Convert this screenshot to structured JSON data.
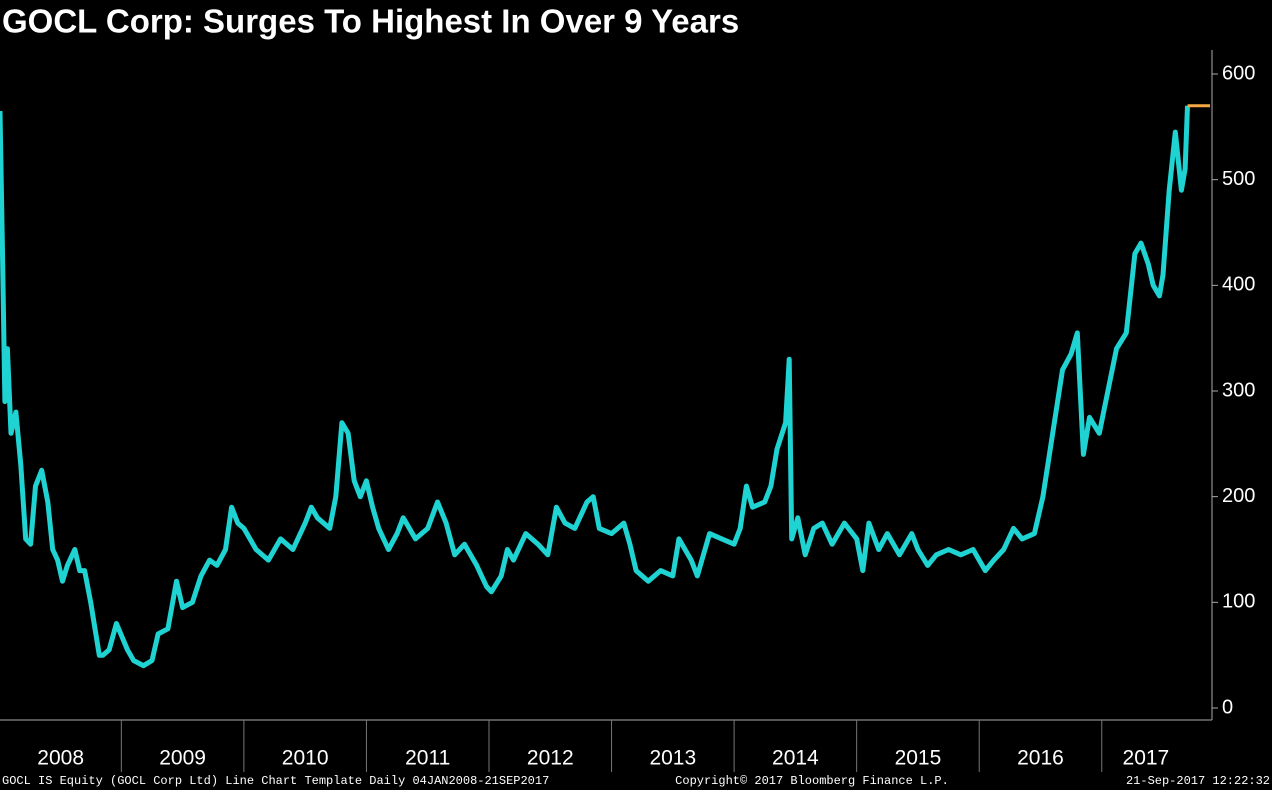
{
  "chart_data": {
    "type": "line",
    "title": "GOCL Corp: Surges To Highest In Over 9 Years",
    "footer_left": "GOCL IS Equity (GOCL Corp Ltd) Line Chart Template  Daily 04JAN2008-21SEP2017",
    "footer_center": "Copyright© 2017 Bloomberg Finance L.P.",
    "footer_right": "21-Sep-2017 12:22:32",
    "xlim": [
      2008.01,
      2017.72
    ],
    "xticks": [
      {
        "value": 2008,
        "label": "2008"
      },
      {
        "value": 2009,
        "label": "2009"
      },
      {
        "value": 2010,
        "label": "2010"
      },
      {
        "value": 2011,
        "label": "2011"
      },
      {
        "value": 2012,
        "label": "2012"
      },
      {
        "value": 2013,
        "label": "2013"
      },
      {
        "value": 2014,
        "label": "2014"
      },
      {
        "value": 2015,
        "label": "2015"
      },
      {
        "value": 2016,
        "label": "2016"
      },
      {
        "value": 2017,
        "label": "2017"
      }
    ],
    "ylim": [
      0,
      630
    ],
    "yticks": [
      0,
      100,
      200,
      300,
      400,
      500,
      600
    ],
    "last_value_color": "#f5a742",
    "series": [
      {
        "name": "GOCL IS Equity",
        "color": "#1fd3d3",
        "x": [
          2008.01,
          2008.03,
          2008.05,
          2008.07,
          2008.1,
          2008.14,
          2008.18,
          2008.22,
          2008.26,
          2008.3,
          2008.35,
          2008.4,
          2008.44,
          2008.48,
          2008.52,
          2008.56,
          2008.62,
          2008.66,
          2008.7,
          2008.75,
          2008.82,
          2008.85,
          2008.9,
          2008.96,
          2009.05,
          2009.1,
          2009.18,
          2009.25,
          2009.3,
          2009.38,
          2009.45,
          2009.5,
          2009.58,
          2009.65,
          2009.72,
          2009.78,
          2009.85,
          2009.9,
          2009.95,
          2010.0,
          2010.1,
          2010.2,
          2010.3,
          2010.4,
          2010.5,
          2010.55,
          2010.6,
          2010.7,
          2010.75,
          2010.8,
          2010.85,
          2010.9,
          2010.95,
          2011.0,
          2011.05,
          2011.1,
          2011.18,
          2011.25,
          2011.3,
          2011.4,
          2011.5,
          2011.58,
          2011.65,
          2011.72,
          2011.8,
          2011.9,
          2011.98,
          2012.02,
          2012.1,
          2012.15,
          2012.2,
          2012.3,
          2012.4,
          2012.48,
          2012.55,
          2012.62,
          2012.7,
          2012.8,
          2012.85,
          2012.9,
          2013.0,
          2013.1,
          2013.15,
          2013.2,
          2013.3,
          2013.4,
          2013.5,
          2013.55,
          2013.65,
          2013.7,
          2013.8,
          2013.9,
          2014.0,
          2014.05,
          2014.1,
          2014.15,
          2014.25,
          2014.3,
          2014.35,
          2014.42,
          2014.45,
          2014.47,
          2014.52,
          2014.58,
          2014.65,
          2014.72,
          2014.8,
          2014.9,
          2015.0,
          2015.05,
          2015.1,
          2015.18,
          2015.25,
          2015.35,
          2015.45,
          2015.5,
          2015.58,
          2015.65,
          2015.75,
          2015.85,
          2015.95,
          2016.0,
          2016.05,
          2016.12,
          2016.2,
          2016.28,
          2016.35,
          2016.45,
          2016.52,
          2016.6,
          2016.68,
          2016.75,
          2016.8,
          2016.85,
          2016.9,
          2016.98,
          2017.05,
          2017.12,
          2017.2,
          2017.27,
          2017.32,
          2017.38,
          2017.42,
          2017.47,
          2017.5,
          2017.55,
          2017.6,
          2017.65,
          2017.68,
          2017.7
        ],
        "values": [
          565,
          430,
          290,
          340,
          260,
          280,
          230,
          160,
          155,
          210,
          225,
          195,
          150,
          140,
          120,
          135,
          150,
          130,
          130,
          100,
          50,
          50,
          55,
          80,
          55,
          45,
          40,
          45,
          70,
          75,
          120,
          95,
          100,
          125,
          140,
          135,
          150,
          190,
          175,
          170,
          150,
          140,
          160,
          150,
          175,
          190,
          180,
          170,
          200,
          270,
          260,
          215,
          200,
          215,
          190,
          170,
          150,
          165,
          180,
          160,
          170,
          195,
          175,
          145,
          155,
          135,
          115,
          110,
          125,
          150,
          140,
          165,
          155,
          145,
          190,
          175,
          170,
          195,
          200,
          170,
          165,
          175,
          155,
          130,
          120,
          130,
          125,
          160,
          140,
          125,
          165,
          160,
          155,
          170,
          210,
          190,
          195,
          210,
          245,
          270,
          330,
          160,
          180,
          145,
          170,
          175,
          155,
          175,
          160,
          130,
          175,
          150,
          165,
          145,
          165,
          150,
          135,
          145,
          150,
          145,
          150,
          140,
          130,
          140,
          150,
          170,
          160,
          165,
          200,
          260,
          320,
          335,
          355,
          240,
          275,
          260,
          300,
          340,
          355,
          430,
          440,
          420,
          400,
          390,
          410,
          490,
          545,
          490,
          510,
          570
        ]
      }
    ]
  }
}
